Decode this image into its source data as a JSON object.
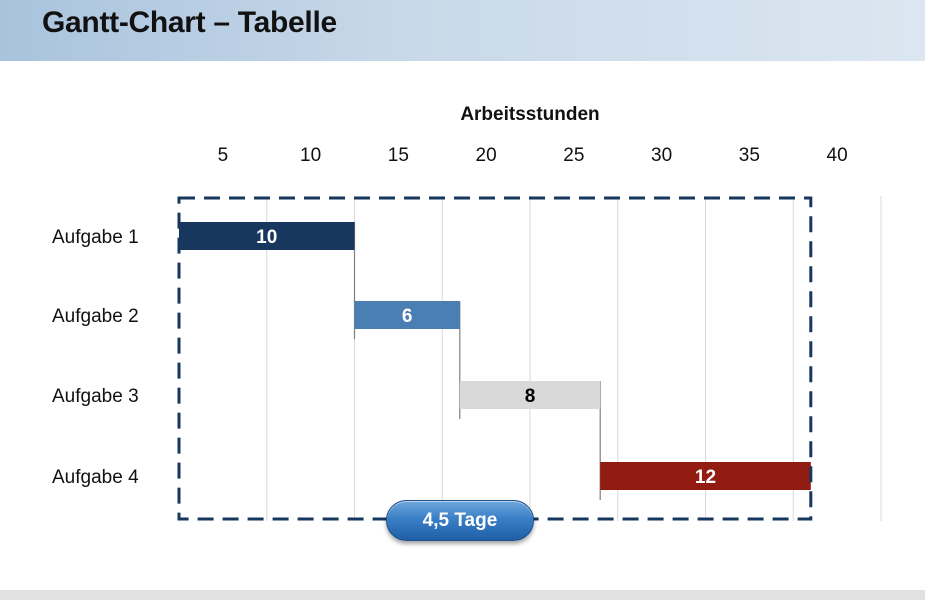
{
  "header": {
    "title": "Gantt-Chart – Tabelle"
  },
  "badge": {
    "label": "4,5 Tage"
  },
  "chart_data": {
    "type": "bar",
    "orientation": "horizontal",
    "stacked_gantt": true,
    "xlabel": "Arbeitsstunden",
    "x_axis_position": "top",
    "xlim": [
      0,
      40
    ],
    "xticks": [
      5,
      10,
      15,
      20,
      25,
      30,
      35,
      40
    ],
    "grid": true,
    "categories": [
      "Aufgabe 1",
      "Aufgabe 2",
      "Aufgabe 3",
      "Aufgabe 4"
    ],
    "tasks": [
      {
        "label": "Aufgabe 1",
        "start": 0,
        "duration": 10,
        "value_label": "10",
        "color": "#17375e",
        "text_color": "#ffffff"
      },
      {
        "label": "Aufgabe 2",
        "start": 10,
        "duration": 6,
        "value_label": "6",
        "color": "#4a7fb3",
        "text_color": "#ffffff"
      },
      {
        "label": "Aufgabe 3",
        "start": 16,
        "duration": 8,
        "value_label": "8",
        "color": "#d9d9d9",
        "text_color": "#000000"
      },
      {
        "label": "Aufgabe 4",
        "start": 24,
        "duration": 12,
        "value_label": "12",
        "color": "#921c12",
        "text_color": "#ffffff"
      }
    ],
    "colors": {
      "frame": "#17375e",
      "grid": "#d9d9d9",
      "connector": "#7f7f7f"
    }
  }
}
